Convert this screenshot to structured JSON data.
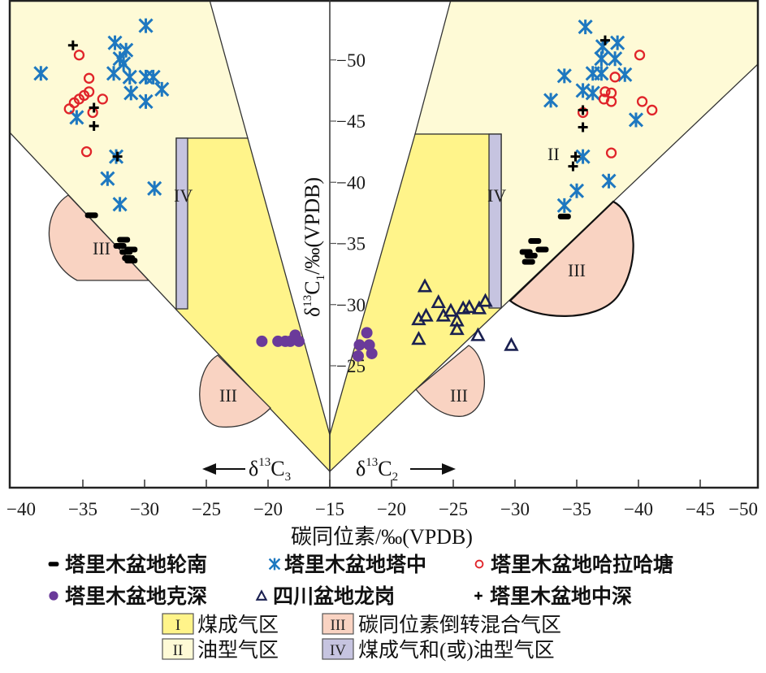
{
  "chart_data": {
    "type": "scatter",
    "xlabel": "碳同位素/‰(VPDB)",
    "ylabel": {
      "delta": "δ",
      "sup": "13",
      "base": "C",
      "sub": "1",
      "unit": "/‰(VPDB)"
    },
    "left_panel_label": {
      "delta": "δ",
      "sup": "13",
      "base": "C",
      "sub": "3"
    },
    "right_panel_label": {
      "delta": "δ",
      "sup": "13",
      "base": "C",
      "sub": "2"
    },
    "x_ticks": [
      "−40",
      "−35",
      "−30",
      "−25",
      "−20",
      "−15",
      "−20",
      "−25",
      "−30",
      "−35",
      "−40",
      "−45",
      "−50"
    ],
    "y_ticks": [
      "−50",
      "−45",
      "−40",
      "−35",
      "−30",
      "−25"
    ],
    "xlim_left": [
      -40,
      -15
    ],
    "xlim_right": [
      -15,
      -50
    ],
    "ylim": [
      -15,
      -55
    ],
    "grid": false,
    "legend_placement": "bottom",
    "region_labels": {
      "I": "I",
      "II": "II",
      "III": "III",
      "IV": "IV"
    },
    "regions": [
      {
        "id": "I",
        "label": "煤成气区",
        "color": "#FFF48A"
      },
      {
        "id": "II",
        "label": "油型气区",
        "color": "#FEFAD6"
      },
      {
        "id": "III",
        "label": "碳同位素倒转混合气区",
        "color": "#F9D3C2"
      },
      {
        "id": "IV",
        "label": "煤成气和(或)油型气区",
        "color": "#C6C4E0"
      }
    ],
    "series": [
      {
        "name": "塔里木盆地轮南",
        "marker": "dash",
        "color": "#000000",
        "left": [
          [
            -34.3,
            -37.3
          ],
          [
            -32.0,
            -34.8
          ],
          [
            -31.7,
            -35.3
          ],
          [
            -31.1,
            -34.5
          ],
          [
            -31.5,
            -34.3
          ],
          [
            -31.3,
            -33.8
          ],
          [
            -31.1,
            -33.6
          ]
        ],
        "right": [
          [
            -34.0,
            -37.2
          ],
          [
            -31.6,
            -35.2
          ],
          [
            -32.2,
            -34.5
          ],
          [
            -30.9,
            -34.3
          ],
          [
            -31.3,
            -34.0
          ],
          [
            -31.1,
            -33.5
          ]
        ]
      },
      {
        "name": "塔里木盆地塔中",
        "marker": "asterisk",
        "color": "#1E78C0",
        "left": [
          [
            -38.4,
            -48.9
          ],
          [
            -29.9,
            -52.8
          ],
          [
            -32.4,
            -51.4
          ],
          [
            -31.5,
            -50.8
          ],
          [
            -32.0,
            -50.1
          ],
          [
            -31.7,
            -49.7
          ],
          [
            -32.5,
            -48.9
          ],
          [
            -31.2,
            -48.6
          ],
          [
            -29.9,
            -48.6
          ],
          [
            -29.3,
            -48.6
          ],
          [
            -28.6,
            -47.6
          ],
          [
            -31.1,
            -47.3
          ],
          [
            -29.9,
            -46.6
          ],
          [
            -35.5,
            -45.3
          ],
          [
            -32.3,
            -42.1
          ],
          [
            -33.0,
            -40.3
          ],
          [
            -29.2,
            -39.5
          ],
          [
            -32.0,
            -38.2
          ]
        ],
        "right": [
          [
            -35.7,
            -52.7
          ],
          [
            -38.3,
            -51.4
          ],
          [
            -37.1,
            -51.1
          ],
          [
            -37.0,
            -50.1
          ],
          [
            -38.1,
            -50.1
          ],
          [
            -36.3,
            -48.9
          ],
          [
            -37.0,
            -48.9
          ],
          [
            -38.9,
            -48.8
          ],
          [
            -34.0,
            -48.7
          ],
          [
            -35.5,
            -47.5
          ],
          [
            -36.3,
            -47.3
          ],
          [
            -32.9,
            -46.7
          ],
          [
            -39.8,
            -45.1
          ],
          [
            -35.5,
            -42.1
          ],
          [
            -37.6,
            -40.1
          ],
          [
            -35.0,
            -39.3
          ],
          [
            -34.0,
            -38.1
          ]
        ]
      },
      {
        "name": "塔里木盆地哈拉哈塘",
        "marker": "circle",
        "color": "#E0242A",
        "left": [
          [
            -35.3,
            -50.4
          ],
          [
            -34.5,
            -48.5
          ],
          [
            -34.5,
            -47.4
          ],
          [
            -34.9,
            -47.1
          ],
          [
            -35.3,
            -46.8
          ],
          [
            -35.7,
            -46.5
          ],
          [
            -33.4,
            -46.8
          ],
          [
            -36.1,
            -46.0
          ],
          [
            -34.2,
            -45.7
          ],
          [
            -34.7,
            -42.5
          ]
        ],
        "right": [
          [
            -40.1,
            -50.4
          ],
          [
            -38.1,
            -48.6
          ],
          [
            -37.3,
            -47.4
          ],
          [
            -37.8,
            -47.3
          ],
          [
            -37.2,
            -46.8
          ],
          [
            -37.8,
            -46.6
          ],
          [
            -40.3,
            -46.6
          ],
          [
            -41.1,
            -45.9
          ],
          [
            -35.5,
            -45.7
          ],
          [
            -37.8,
            -42.4
          ]
        ]
      },
      {
        "name": "塔里木盆地克深",
        "marker": "dot",
        "color": "#6A3A9A",
        "left": [
          [
            -20.5,
            -27.0
          ],
          [
            -19.2,
            -27.0
          ],
          [
            -18.6,
            -27.0
          ],
          [
            -18.2,
            -27.0
          ],
          [
            -17.8,
            -27.5
          ],
          [
            -17.5,
            -27.0
          ]
        ],
        "right": [
          [
            -17.3,
            -25.8
          ],
          [
            -18.0,
            -27.7
          ],
          [
            -18.2,
            -26.7
          ],
          [
            -18.4,
            -26.0
          ],
          [
            -17.4,
            -26.7
          ]
        ]
      },
      {
        "name": "四川盆地龙岗",
        "marker": "triangle",
        "color": "#1A2050",
        "left": [],
        "right": [
          [
            -22.7,
            -31.5
          ],
          [
            -22.2,
            -28.8
          ],
          [
            -22.2,
            -27.2
          ],
          [
            -22.8,
            -29.1
          ],
          [
            -23.8,
            -30.2
          ],
          [
            -24.2,
            -29.1
          ],
          [
            -24.8,
            -29.5
          ],
          [
            -25.3,
            -28.7
          ],
          [
            -25.3,
            -28.0
          ],
          [
            -25.8,
            -29.7
          ],
          [
            -26.3,
            -29.8
          ],
          [
            -27.1,
            -29.7
          ],
          [
            -27.6,
            -30.3
          ],
          [
            -27.0,
            -27.5
          ],
          [
            -29.7,
            -26.7
          ]
        ]
      },
      {
        "name": "塔里木盆地中深",
        "marker": "plus",
        "color": "#000000",
        "left": [
          [
            -35.8,
            -51.2
          ],
          [
            -34.1,
            -46.1
          ],
          [
            -34.1,
            -44.6
          ],
          [
            -32.2,
            -42.1
          ]
        ],
        "right": [
          [
            -37.3,
            -51.6
          ],
          [
            -35.5,
            -45.9
          ],
          [
            -35.5,
            -44.5
          ],
          [
            -34.9,
            -42.1
          ],
          [
            -34.7,
            -41.3
          ]
        ]
      }
    ]
  }
}
